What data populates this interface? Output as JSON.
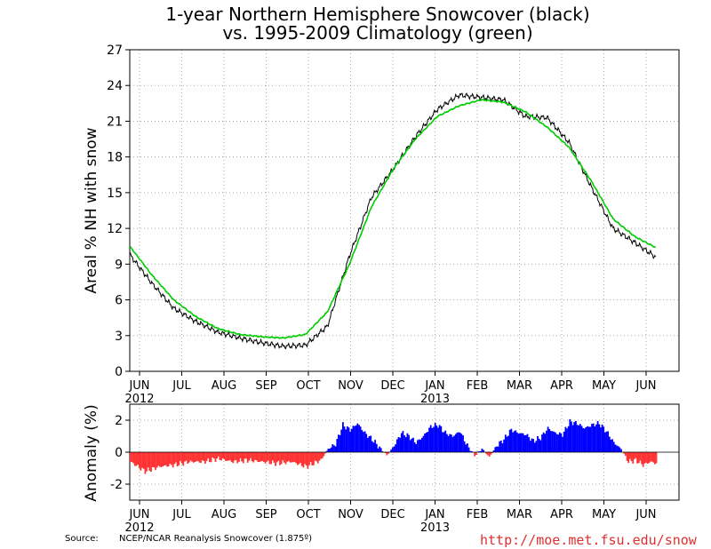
{
  "title_line1": "1-year Northern Hemisphere Snowcover (black)",
  "title_line2": "vs. 1995-2009 Climatology (green)",
  "source_label": "Source:",
  "source_text": "NCEP/NCAR Reanalysis Snowcover (1.875º)",
  "url": "http://moe.met.fsu.edu/snow",
  "colors": {
    "observed": "#000000",
    "climatology": "#00cc00",
    "positive_anomaly": "#0000ff",
    "negative_anomaly": "#ff3333",
    "grid": "#aaaaaa"
  },
  "months": [
    "JUN",
    "JUL",
    "AUG",
    "SEP",
    "OCT",
    "NOV",
    "DEC",
    "JAN",
    "FEB",
    "MAR",
    "APR",
    "MAY",
    "JUN"
  ],
  "year_labels": [
    {
      "month_index": 0,
      "text": "2012"
    },
    {
      "month_index": 7,
      "text": "2013"
    }
  ],
  "chart_data": [
    {
      "type": "line",
      "ylabel": "Areal % NH with snow",
      "ylim": [
        0,
        27
      ],
      "yticks": [
        0,
        3,
        6,
        9,
        12,
        15,
        18,
        21,
        24,
        27
      ],
      "x_unit": "days from 1 Jun 2012",
      "grid": true,
      "series": [
        {
          "name": "observed (black)",
          "x": [
            0,
            15,
            30,
            45,
            60,
            75,
            90,
            105,
            120,
            135,
            150,
            165,
            180,
            195,
            210,
            225,
            240,
            255,
            270,
            285,
            300,
            315,
            330,
            345,
            359
          ],
          "values": [
            9.8,
            7.4,
            5.3,
            4.2,
            3.3,
            2.8,
            2.4,
            2.1,
            2.2,
            3.8,
            9.7,
            14.6,
            17.0,
            19.7,
            22.0,
            23.2,
            23.0,
            22.8,
            21.4,
            21.3,
            19.2,
            15.5,
            12.0,
            10.8,
            9.6
          ]
        },
        {
          "name": "climatology (green)",
          "x": [
            0,
            15,
            30,
            45,
            60,
            75,
            90,
            105,
            120,
            135,
            150,
            165,
            180,
            195,
            210,
            225,
            240,
            255,
            270,
            285,
            300,
            315,
            330,
            345,
            359
          ],
          "values": [
            10.5,
            8.1,
            6.0,
            4.6,
            3.6,
            3.1,
            2.9,
            2.8,
            3.1,
            5.0,
            9.0,
            13.8,
            17.0,
            19.5,
            21.4,
            22.3,
            22.8,
            22.6,
            21.8,
            20.5,
            18.8,
            16.0,
            12.8,
            11.3,
            10.4
          ]
        }
      ]
    },
    {
      "type": "area",
      "ylabel": "Anomaly (%)",
      "ylim": [
        -3,
        3
      ],
      "yticks": [
        -2,
        0,
        2
      ],
      "x_unit": "days from 1 Jun 2012",
      "grid": true,
      "series": [
        {
          "name": "anomaly",
          "x": [
            0,
            10,
            20,
            30,
            40,
            50,
            60,
            70,
            80,
            90,
            100,
            110,
            120,
            130,
            135,
            140,
            145,
            150,
            155,
            160,
            165,
            170,
            175,
            180,
            185,
            190,
            195,
            200,
            205,
            210,
            215,
            220,
            225,
            230,
            235,
            240,
            245,
            250,
            255,
            260,
            265,
            270,
            275,
            280,
            285,
            290,
            295,
            300,
            305,
            310,
            315,
            320,
            325,
            330,
            335,
            340,
            345,
            350,
            355,
            359
          ],
          "values": [
            -0.6,
            -1.2,
            -0.9,
            -0.8,
            -0.6,
            -0.6,
            -0.4,
            -0.6,
            -0.5,
            -0.6,
            -0.7,
            -0.6,
            -0.9,
            -0.5,
            0.2,
            0.5,
            1.7,
            1.4,
            1.8,
            1.2,
            0.8,
            0.3,
            -0.2,
            0.4,
            1.2,
            1.0,
            0.6,
            1.0,
            1.6,
            1.7,
            1.2,
            1.0,
            1.3,
            0.4,
            -0.2,
            0.2,
            -0.3,
            0.4,
            0.8,
            1.4,
            1.2,
            1.1,
            0.7,
            0.9,
            1.5,
            1.2,
            1.1,
            1.9,
            1.8,
            1.5,
            1.7,
            1.8,
            1.3,
            0.6,
            0.2,
            -0.6,
            -0.5,
            -0.8,
            -0.6,
            -0.7
          ]
        }
      ]
    }
  ]
}
